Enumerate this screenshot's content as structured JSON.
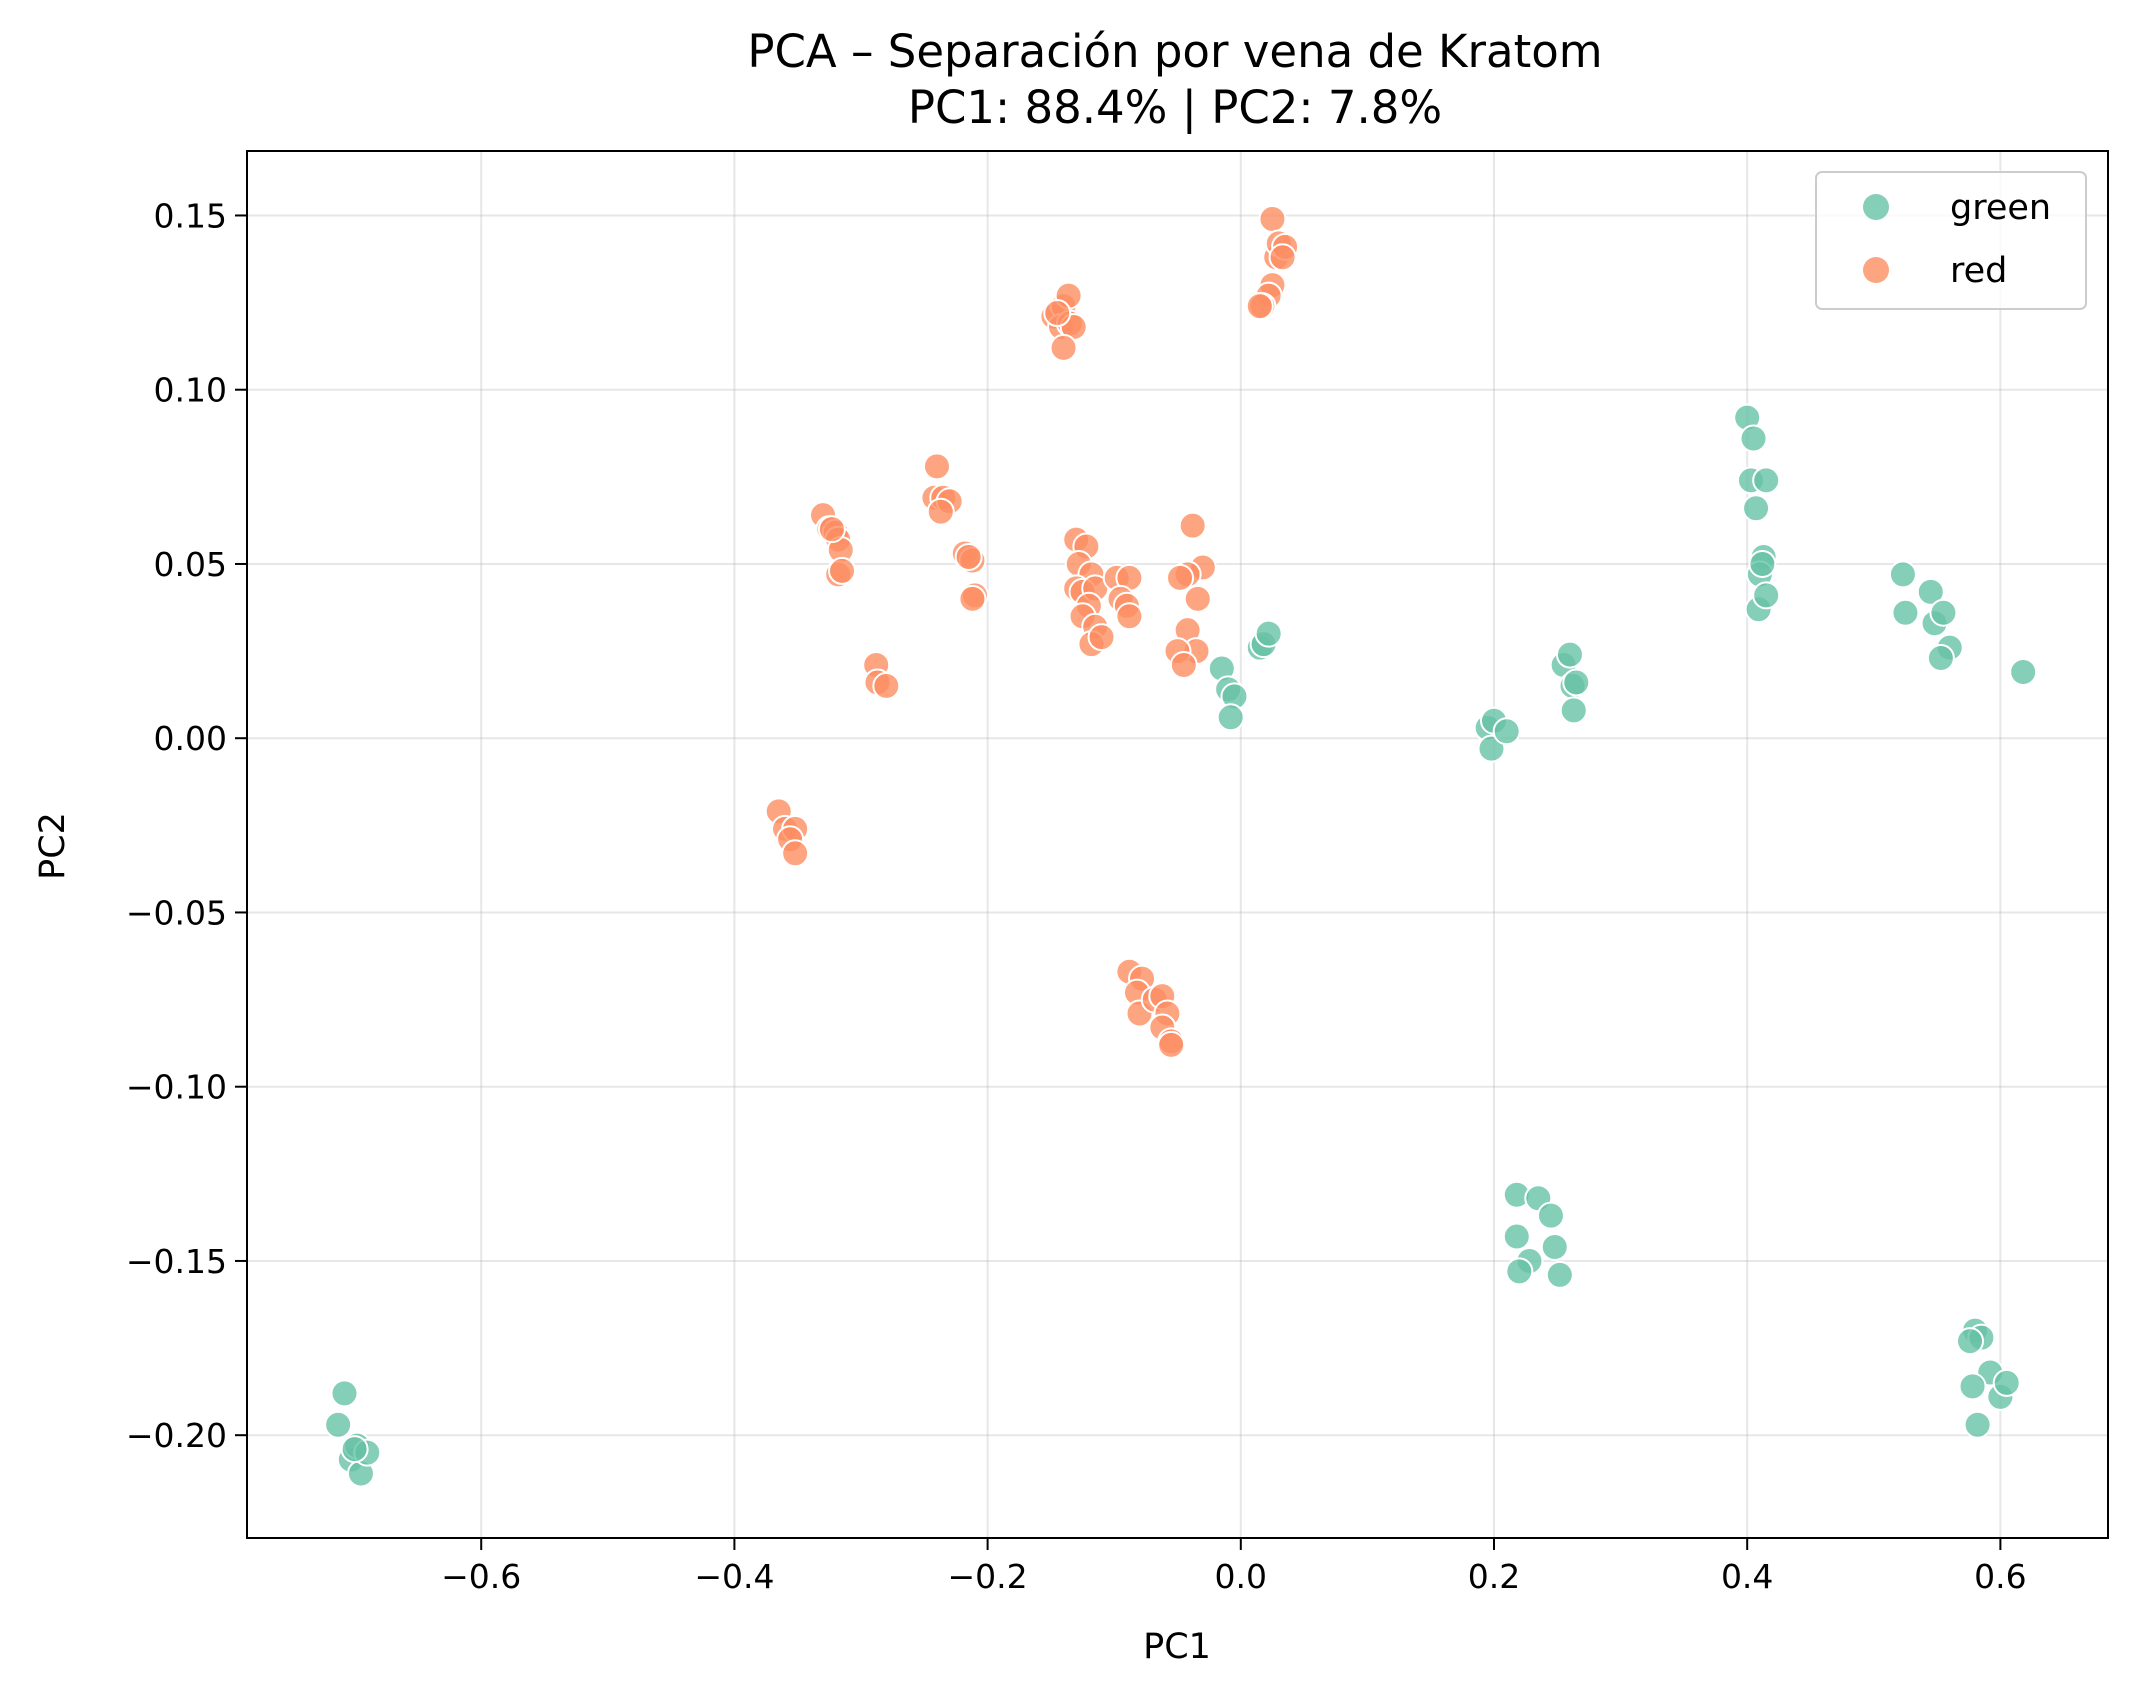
{
  "chart_data": {
    "type": "scatter",
    "title": "PCA – Separación por vena de Kratom",
    "subtitle": "PC1: 88.4% | PC2: 7.8%",
    "xlabel": "PC1",
    "ylabel": "PC2",
    "xlim": [
      -0.785,
      0.685
    ],
    "ylim": [
      -0.2295,
      0.1685
    ],
    "xticks": [
      {
        "value": -0.6,
        "label": "−0.6"
      },
      {
        "value": -0.4,
        "label": "−0.4"
      },
      {
        "value": -0.2,
        "label": "−0.2"
      },
      {
        "value": 0.0,
        "label": "0.0"
      },
      {
        "value": 0.2,
        "label": "0.2"
      },
      {
        "value": 0.4,
        "label": "0.4"
      },
      {
        "value": 0.6,
        "label": "0.6"
      }
    ],
    "yticks": [
      {
        "value": 0.15,
        "label": "0.15"
      },
      {
        "value": 0.1,
        "label": "0.10"
      },
      {
        "value": 0.05,
        "label": "0.05"
      },
      {
        "value": 0.0,
        "label": "0.00"
      },
      {
        "value": -0.05,
        "label": "−0.05"
      },
      {
        "value": -0.1,
        "label": "−0.10"
      },
      {
        "value": -0.15,
        "label": "−0.15"
      },
      {
        "value": -0.2,
        "label": "−0.20"
      }
    ],
    "grid": true,
    "legend_position": "top-right",
    "series": [
      {
        "name": "green",
        "color": "#66c2a5",
        "points": [
          [
            -0.713,
            -0.197
          ],
          [
            -0.708,
            -0.188
          ],
          [
            -0.703,
            -0.207
          ],
          [
            -0.698,
            -0.203
          ],
          [
            -0.695,
            -0.211
          ],
          [
            -0.69,
            -0.205
          ],
          [
            -0.7,
            -0.204
          ],
          [
            -0.015,
            0.02
          ],
          [
            -0.01,
            0.014
          ],
          [
            -0.005,
            0.012
          ],
          [
            -0.008,
            0.006
          ],
          [
            0.015,
            0.026
          ],
          [
            0.018,
            0.027
          ],
          [
            0.022,
            0.03
          ],
          [
            0.195,
            0.003
          ],
          [
            0.2,
            0.005
          ],
          [
            0.198,
            -0.003
          ],
          [
            0.21,
            0.002
          ],
          [
            0.255,
            0.021
          ],
          [
            0.26,
            0.024
          ],
          [
            0.262,
            0.015
          ],
          [
            0.265,
            0.016
          ],
          [
            0.263,
            0.008
          ],
          [
            0.4,
            0.092
          ],
          [
            0.405,
            0.086
          ],
          [
            0.403,
            0.074
          ],
          [
            0.415,
            0.074
          ],
          [
            0.407,
            0.066
          ],
          [
            0.413,
            0.052
          ],
          [
            0.41,
            0.047
          ],
          [
            0.412,
            0.05
          ],
          [
            0.409,
            0.037
          ],
          [
            0.415,
            0.041
          ],
          [
            0.523,
            0.047
          ],
          [
            0.525,
            0.036
          ],
          [
            0.545,
            0.042
          ],
          [
            0.548,
            0.033
          ],
          [
            0.555,
            0.036
          ],
          [
            0.56,
            0.026
          ],
          [
            0.553,
            0.023
          ],
          [
            0.618,
            0.019
          ],
          [
            0.218,
            -0.131
          ],
          [
            0.235,
            -0.132
          ],
          [
            0.218,
            -0.143
          ],
          [
            0.228,
            -0.15
          ],
          [
            0.22,
            -0.153
          ],
          [
            0.245,
            -0.137
          ],
          [
            0.248,
            -0.146
          ],
          [
            0.252,
            -0.154
          ],
          [
            0.58,
            -0.17
          ],
          [
            0.585,
            -0.172
          ],
          [
            0.576,
            -0.173
          ],
          [
            0.592,
            -0.182
          ],
          [
            0.578,
            -0.186
          ],
          [
            0.6,
            -0.189
          ],
          [
            0.605,
            -0.185
          ],
          [
            0.582,
            -0.197
          ]
        ]
      },
      {
        "name": "red",
        "color": "#fc8d62",
        "points": [
          [
            -0.365,
            -0.021
          ],
          [
            -0.36,
            -0.026
          ],
          [
            -0.352,
            -0.026
          ],
          [
            -0.356,
            -0.029
          ],
          [
            -0.352,
            -0.033
          ],
          [
            -0.33,
            0.064
          ],
          [
            -0.325,
            0.06
          ],
          [
            -0.32,
            0.059
          ],
          [
            -0.318,
            0.057
          ],
          [
            -0.316,
            0.054
          ],
          [
            -0.318,
            0.047
          ],
          [
            -0.315,
            0.048
          ],
          [
            -0.323,
            0.06
          ],
          [
            -0.288,
            0.021
          ],
          [
            -0.287,
            0.016
          ],
          [
            -0.28,
            0.015
          ],
          [
            -0.24,
            0.078
          ],
          [
            -0.242,
            0.069
          ],
          [
            -0.235,
            0.069
          ],
          [
            -0.23,
            0.068
          ],
          [
            -0.237,
            0.065
          ],
          [
            -0.218,
            0.053
          ],
          [
            -0.212,
            0.051
          ],
          [
            -0.215,
            0.052
          ],
          [
            -0.21,
            0.041
          ],
          [
            -0.212,
            0.04
          ],
          [
            -0.148,
            0.121
          ],
          [
            -0.14,
            0.124
          ],
          [
            -0.136,
            0.127
          ],
          [
            -0.142,
            0.118
          ],
          [
            -0.135,
            0.119
          ],
          [
            -0.132,
            0.118
          ],
          [
            -0.14,
            0.112
          ],
          [
            -0.145,
            0.122
          ],
          [
            -0.13,
            0.057
          ],
          [
            -0.122,
            0.055
          ],
          [
            -0.128,
            0.05
          ],
          [
            -0.118,
            0.047
          ],
          [
            -0.13,
            0.043
          ],
          [
            -0.125,
            0.042
          ],
          [
            -0.115,
            0.043
          ],
          [
            -0.12,
            0.038
          ],
          [
            -0.125,
            0.035
          ],
          [
            -0.115,
            0.032
          ],
          [
            -0.118,
            0.027
          ],
          [
            -0.11,
            0.029
          ],
          [
            -0.098,
            0.046
          ],
          [
            -0.088,
            0.046
          ],
          [
            -0.095,
            0.04
          ],
          [
            -0.09,
            0.038
          ],
          [
            -0.088,
            0.035
          ],
          [
            -0.038,
            0.061
          ],
          [
            -0.03,
            0.049
          ],
          [
            -0.042,
            0.047
          ],
          [
            -0.048,
            0.046
          ],
          [
            -0.034,
            0.04
          ],
          [
            -0.042,
            0.031
          ],
          [
            -0.035,
            0.025
          ],
          [
            -0.05,
            0.025
          ],
          [
            -0.045,
            0.021
          ],
          [
            0.025,
            0.149
          ],
          [
            0.028,
            0.138
          ],
          [
            0.03,
            0.142
          ],
          [
            0.035,
            0.141
          ],
          [
            0.033,
            0.138
          ],
          [
            0.025,
            0.13
          ],
          [
            0.022,
            0.127
          ],
          [
            0.017,
            0.124
          ],
          [
            0.015,
            0.124
          ],
          [
            -0.088,
            -0.067
          ],
          [
            -0.078,
            -0.069
          ],
          [
            -0.082,
            -0.073
          ],
          [
            -0.08,
            -0.079
          ],
          [
            -0.068,
            -0.075
          ],
          [
            -0.062,
            -0.074
          ],
          [
            -0.058,
            -0.079
          ],
          [
            -0.062,
            -0.083
          ],
          [
            -0.055,
            -0.087
          ],
          [
            -0.055,
            -0.088
          ]
        ]
      }
    ]
  }
}
